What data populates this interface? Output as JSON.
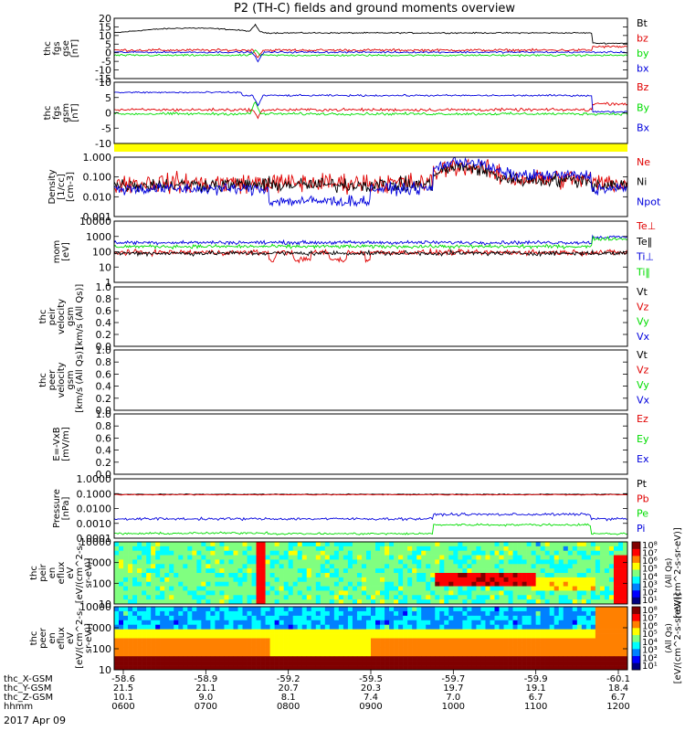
{
  "title": "P2 (TH-C) fields and ground moments overview",
  "date": "2017 Apr 09",
  "colors": {
    "black": "#000000",
    "red": "#e00000",
    "green": "#00dd00",
    "blue": "#0000dd",
    "yellow": "#ffff00"
  },
  "chart_data": [
    {
      "type": "line",
      "ylabel": [
        "thc",
        "fgs",
        "gse",
        "[nT]"
      ],
      "ylim": [
        -15,
        20
      ],
      "ticks": [
        "20",
        "15",
        "10",
        "5",
        "0",
        "-5",
        "-10",
        "-15"
      ],
      "series": [
        {
          "name": "Bt",
          "color": "black"
        },
        {
          "name": "bz",
          "color": "red"
        },
        {
          "name": "by",
          "color": "green"
        },
        {
          "name": "bx",
          "color": "blue"
        }
      ]
    },
    {
      "type": "line",
      "ylabel": [
        "thc",
        "fgs",
        "gsm",
        "[nT]"
      ],
      "ylim": [
        -15,
        15
      ],
      "ticks": [
        "10",
        "5",
        "0",
        "-5",
        "-10"
      ],
      "series": [
        {
          "name": "Bz",
          "color": "red"
        },
        {
          "name": "By",
          "color": "green"
        },
        {
          "name": "Bx",
          "color": "blue"
        }
      ]
    },
    {
      "type": "line",
      "ylabel": [
        "Density",
        "[1/cc]",
        "[cm-3]"
      ],
      "ylim": [
        0.001,
        1
      ],
      "log": true,
      "ticks": [
        "1.000",
        "0.100",
        "0.010",
        "0.001"
      ],
      "series": [
        {
          "name": "Ne",
          "color": "red"
        },
        {
          "name": "Ni",
          "color": "black"
        },
        {
          "name": "Npot",
          "color": "blue"
        }
      ]
    },
    {
      "type": "line",
      "ylabel": [
        "mom",
        "[eV]"
      ],
      "ylim": [
        1,
        10000
      ],
      "log": true,
      "ticks": [
        "10000",
        "1000",
        "100",
        "10",
        "1"
      ],
      "series": [
        {
          "name": "Te⊥",
          "color": "red"
        },
        {
          "name": "Te‖",
          "color": "black"
        },
        {
          "name": "Ti⊥",
          "color": "blue"
        },
        {
          "name": "Ti‖",
          "color": "green"
        }
      ]
    },
    {
      "type": "line",
      "ylabel": [
        "thc",
        "peir",
        "velocity",
        "gsm",
        "[km/s (All Qs)]"
      ],
      "ylim": [
        0,
        1
      ],
      "ticks": [
        "1.0",
        "0.8",
        "0.6",
        "0.4",
        "0.2",
        "0.0"
      ],
      "series": [
        {
          "name": "Vt",
          "color": "black"
        },
        {
          "name": "Vz",
          "color": "red"
        },
        {
          "name": "Vy",
          "color": "green"
        },
        {
          "name": "Vx",
          "color": "blue"
        }
      ]
    },
    {
      "type": "line",
      "ylabel": [
        "thc",
        "peer",
        "velocity",
        "gsm",
        "[km/s (All Qs)]"
      ],
      "ylim": [
        0,
        1
      ],
      "ticks": [
        "1.0",
        "0.8",
        "0.6",
        "0.4",
        "0.2",
        "0.0"
      ],
      "series": [
        {
          "name": "Vt",
          "color": "black"
        },
        {
          "name": "Vz",
          "color": "red"
        },
        {
          "name": "Vy",
          "color": "green"
        },
        {
          "name": "Vx",
          "color": "blue"
        }
      ]
    },
    {
      "type": "line",
      "ylabel": [
        "E=-VxB",
        "[mV/m]"
      ],
      "ylim": [
        0,
        1
      ],
      "ticks": [
        "1.0",
        "0.8",
        "0.6",
        "0.4",
        "0.2",
        "0.0"
      ],
      "series": [
        {
          "name": "Ez",
          "color": "red"
        },
        {
          "name": "Ey",
          "color": "green"
        },
        {
          "name": "Ex",
          "color": "blue"
        }
      ]
    },
    {
      "type": "line",
      "ylabel": [
        "Pressure",
        "[nPa]"
      ],
      "ylim": [
        0.0001,
        1
      ],
      "log": true,
      "ticks": [
        "1.0000",
        "0.1000",
        "0.0100",
        "0.0010",
        "0.0001"
      ],
      "series": [
        {
          "name": "Pt",
          "color": "black"
        },
        {
          "name": "Pb",
          "color": "red"
        },
        {
          "name": "Pe",
          "color": "green"
        },
        {
          "name": "Pi",
          "color": "blue"
        }
      ]
    },
    {
      "type": "heatmap",
      "ylabel": [
        "thc",
        "peir",
        "en",
        "eflux",
        "eV",
        "[eV/(cm^2-s-",
        "sr-eV)]"
      ],
      "ylim": [
        5,
        20000
      ],
      "log": true,
      "ticks": [
        "10000",
        "1000",
        "100",
        "10"
      ],
      "colorbar": {
        "label": "[eV/(cm^2-s-sr-eV)]",
        "ticks": [
          "10⁸",
          "10⁷",
          "10⁶",
          "10⁵",
          "10⁴",
          "10³",
          "10²",
          "10¹"
        ],
        "note": "(All Qs)"
      }
    },
    {
      "type": "heatmap",
      "ylabel": [
        "thc",
        "peer",
        "en",
        "eflux",
        "eV",
        "[eV/(cm^2-s-",
        "sr-eV)]"
      ],
      "ylim": [
        5,
        20000
      ],
      "log": true,
      "ticks": [
        "10000",
        "1000",
        "100",
        "10"
      ],
      "colorbar": {
        "label": "[eV/(cm^2-s-sr-eV)]",
        "ticks": [
          "10⁸",
          "10⁷",
          "10⁶",
          "10⁵",
          "10⁴",
          "10³",
          "10²",
          "10¹"
        ],
        "note": "(All Qs)"
      }
    }
  ],
  "x_axis": {
    "row_labels": [
      "thc_X-GSM",
      "thc_Y-GSM",
      "thc_Z-GSM",
      "hhmm"
    ],
    "columns": [
      [
        "-58.6",
        "21.5",
        "10.1",
        "0600"
      ],
      [
        "-58.9",
        "21.1",
        "9.0",
        "0700"
      ],
      [
        "-59.2",
        "20.7",
        "8.1",
        "0800"
      ],
      [
        "-59.5",
        "20.3",
        "7.4",
        "0900"
      ],
      [
        "-59.7",
        "19.7",
        "7.0",
        "1000"
      ],
      [
        "-59.9",
        "19.1",
        "6.7",
        "1100"
      ],
      [
        "-60.1",
        "18.4",
        "6.7",
        "1200"
      ]
    ]
  }
}
